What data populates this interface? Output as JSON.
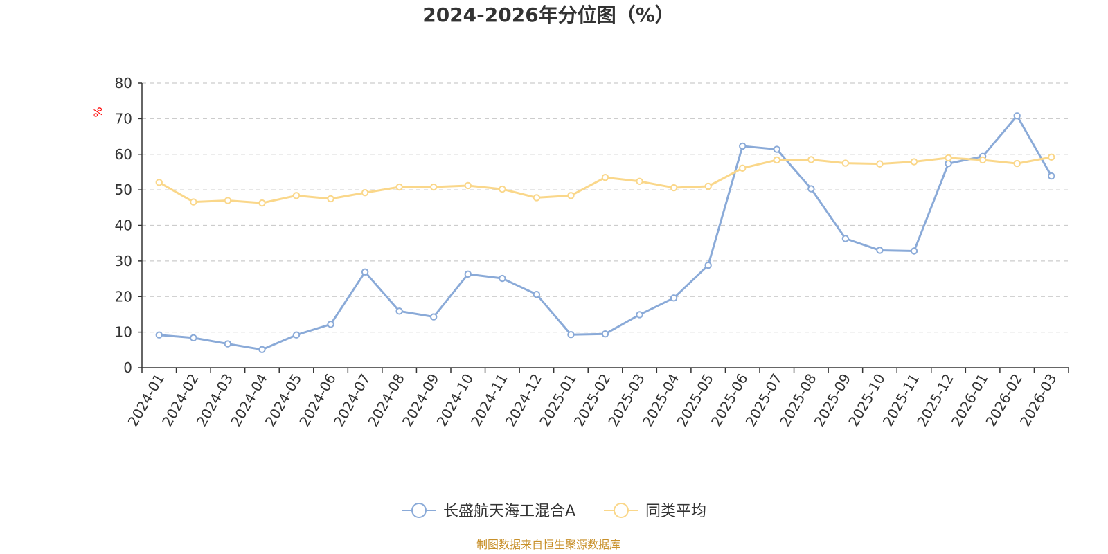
{
  "chart_data": {
    "type": "line",
    "title": "2024-2026年分位图（%）",
    "ylabel": "%",
    "xlabel": "",
    "ylim": [
      0,
      80
    ],
    "yticks": [
      "0",
      "10",
      "20",
      "30",
      "40",
      "50",
      "60",
      "70",
      "80"
    ],
    "grid": true,
    "legend_position": "bottom-center",
    "categories": [
      "2024-01",
      "2024-02",
      "2024-03",
      "2024-04",
      "2024-05",
      "2024-06",
      "2024-07",
      "2024-08",
      "2024-09",
      "2024-10",
      "2024-11",
      "2024-12",
      "2025-01",
      "2025-02",
      "2025-03",
      "2025-04",
      "2025-05",
      "2025-06",
      "2025-07",
      "2025-08",
      "2025-09",
      "2025-10",
      "2025-11",
      "2025-12",
      "2026-01",
      "2026-02",
      "2026-03"
    ],
    "series": [
      {
        "name": "长盛航天海工混合A",
        "color": "#8aaad8",
        "values": [
          9.2,
          8.4,
          6.7,
          5.1,
          9.2,
          12.2,
          26.9,
          15.9,
          14.3,
          26.3,
          25.1,
          20.6,
          9.3,
          9.5,
          14.9,
          19.6,
          28.8,
          62.3,
          61.4,
          50.3,
          36.3,
          33.0,
          32.8,
          57.4,
          59.4,
          70.8,
          53.9
        ]
      },
      {
        "name": "同类平均",
        "color": "#fad78a",
        "values": [
          52.1,
          46.6,
          47.0,
          46.3,
          48.4,
          47.5,
          49.2,
          50.8,
          50.8,
          51.2,
          50.2,
          47.8,
          48.4,
          53.5,
          52.4,
          50.6,
          51.0,
          56.1,
          58.4,
          58.5,
          57.5,
          57.3,
          57.9,
          59.0,
          58.4,
          57.4,
          59.2
        ]
      }
    ],
    "colors": {
      "title": "#333333",
      "axis": "#333333",
      "grid": "#cccccc",
      "unit": "#ff0000",
      "source": "#c8902a"
    }
  },
  "source_note": "制图数据来自恒生聚源数据库"
}
